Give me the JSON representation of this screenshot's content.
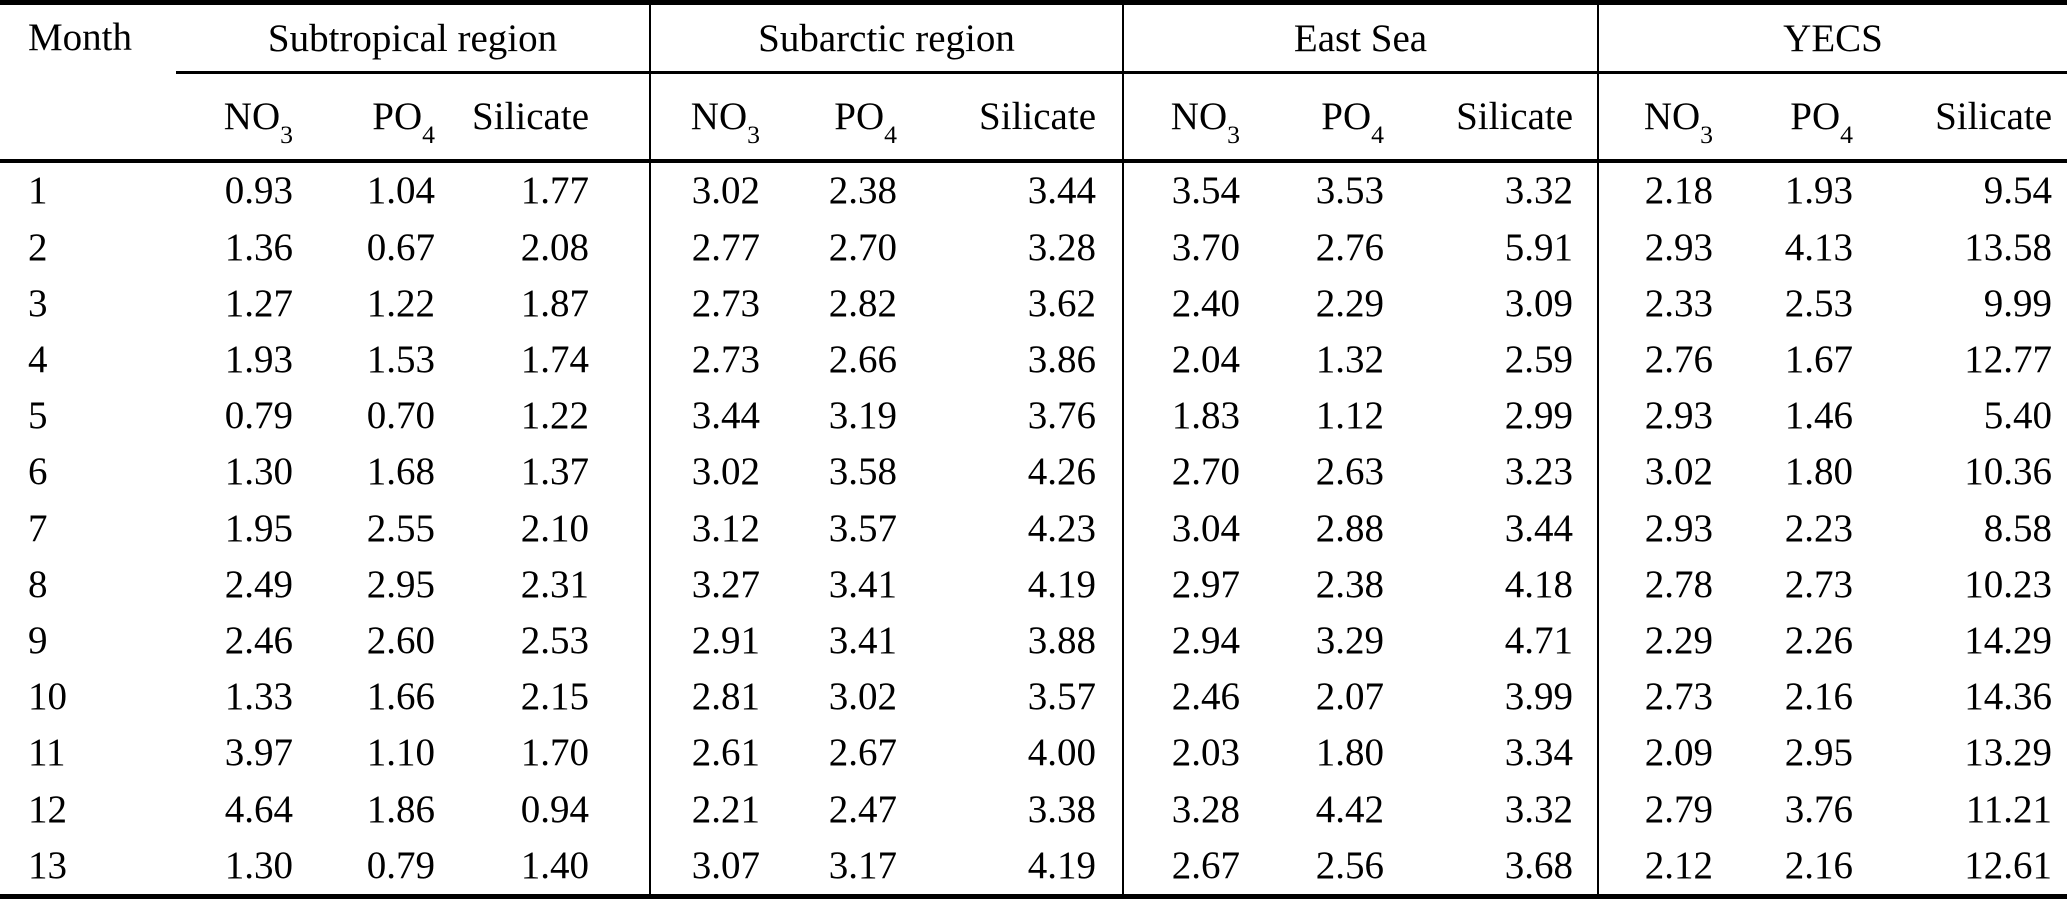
{
  "table": {
    "corner_header": "Month",
    "groups": [
      {
        "label": "Subtropical region",
        "subcolumns": [
          {
            "base": "NO",
            "sub": "3"
          },
          {
            "base": "PO",
            "sub": "4"
          },
          {
            "base": "Silicate",
            "sub": ""
          }
        ]
      },
      {
        "label": "Subarctic region",
        "subcolumns": [
          {
            "base": "NO",
            "sub": "3"
          },
          {
            "base": "PO",
            "sub": "4"
          },
          {
            "base": "Silicate",
            "sub": ""
          }
        ]
      },
      {
        "label": "East Sea",
        "subcolumns": [
          {
            "base": "NO",
            "sub": "3"
          },
          {
            "base": "PO",
            "sub": "4"
          },
          {
            "base": "Silicate",
            "sub": ""
          }
        ]
      },
      {
        "label": "YECS",
        "subcolumns": [
          {
            "base": "NO",
            "sub": "3"
          },
          {
            "base": "PO",
            "sub": "4"
          },
          {
            "base": "Silicate",
            "sub": ""
          }
        ]
      }
    ],
    "rows": [
      {
        "month": "1",
        "values": [
          "0.93",
          "1.04",
          "1.77",
          "3.02",
          "2.38",
          "3.44",
          "3.54",
          "3.53",
          "3.32",
          "2.18",
          "1.93",
          "9.54"
        ]
      },
      {
        "month": "2",
        "values": [
          "1.36",
          "0.67",
          "2.08",
          "2.77",
          "2.70",
          "3.28",
          "3.70",
          "2.76",
          "5.91",
          "2.93",
          "4.13",
          "13.58"
        ]
      },
      {
        "month": "3",
        "values": [
          "1.27",
          "1.22",
          "1.87",
          "2.73",
          "2.82",
          "3.62",
          "2.40",
          "2.29",
          "3.09",
          "2.33",
          "2.53",
          "9.99"
        ]
      },
      {
        "month": "4",
        "values": [
          "1.93",
          "1.53",
          "1.74",
          "2.73",
          "2.66",
          "3.86",
          "2.04",
          "1.32",
          "2.59",
          "2.76",
          "1.67",
          "12.77"
        ]
      },
      {
        "month": "5",
        "values": [
          "0.79",
          "0.70",
          "1.22",
          "3.44",
          "3.19",
          "3.76",
          "1.83",
          "1.12",
          "2.99",
          "2.93",
          "1.46",
          "5.40"
        ]
      },
      {
        "month": "6",
        "values": [
          "1.30",
          "1.68",
          "1.37",
          "3.02",
          "3.58",
          "4.26",
          "2.70",
          "2.63",
          "3.23",
          "3.02",
          "1.80",
          "10.36"
        ]
      },
      {
        "month": "7",
        "values": [
          "1.95",
          "2.55",
          "2.10",
          "3.12",
          "3.57",
          "4.23",
          "3.04",
          "2.88",
          "3.44",
          "2.93",
          "2.23",
          "8.58"
        ]
      },
      {
        "month": "8",
        "values": [
          "2.49",
          "2.95",
          "2.31",
          "3.27",
          "3.41",
          "4.19",
          "2.97",
          "2.38",
          "4.18",
          "2.78",
          "2.73",
          "10.23"
        ]
      },
      {
        "month": "9",
        "values": [
          "2.46",
          "2.60",
          "2.53",
          "2.91",
          "3.41",
          "3.88",
          "2.94",
          "3.29",
          "4.71",
          "2.29",
          "2.26",
          "14.29"
        ]
      },
      {
        "month": "10",
        "values": [
          "1.33",
          "1.66",
          "2.15",
          "2.81",
          "3.02",
          "3.57",
          "2.46",
          "2.07",
          "3.99",
          "2.73",
          "2.16",
          "14.36"
        ]
      },
      {
        "month": "11",
        "values": [
          "3.97",
          "1.10",
          "1.70",
          "2.61",
          "2.67",
          "4.00",
          "2.03",
          "1.80",
          "3.34",
          "2.09",
          "2.95",
          "13.29"
        ]
      },
      {
        "month": "12",
        "values": [
          "4.64",
          "1.86",
          "0.94",
          "2.21",
          "2.47",
          "3.38",
          "3.28",
          "4.42",
          "3.32",
          "2.79",
          "3.76",
          "11.21"
        ]
      },
      {
        "month": "13",
        "values": [
          "1.30",
          "0.79",
          "1.40",
          "3.07",
          "3.17",
          "4.19",
          "2.67",
          "2.56",
          "3.68",
          "2.12",
          "2.16",
          "12.61"
        ]
      }
    ]
  },
  "colors": {
    "text": "#000000",
    "background": "#ffffff",
    "rule": "#000000"
  }
}
